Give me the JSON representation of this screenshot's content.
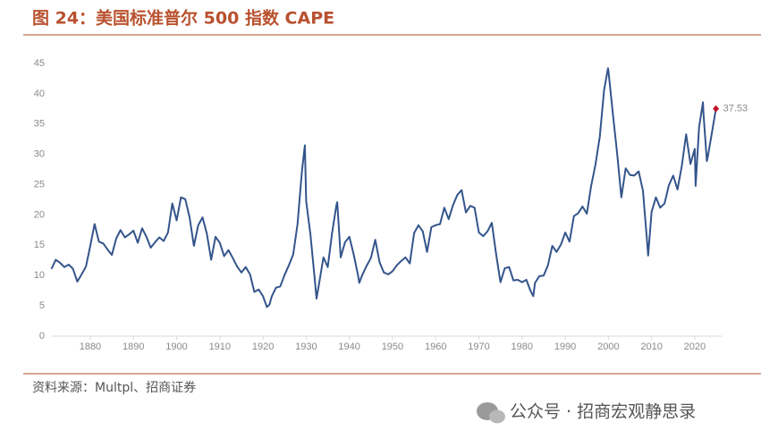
{
  "chart_data": {
    "type": "line",
    "title": "图 24：美国标准普尔 500 指数 CAPE",
    "source": "资料来源：Multpl、招商证券",
    "color": "#34558b",
    "marker_color": "#c0142a",
    "x": [
      1871,
      1872,
      1873,
      1874,
      1875,
      1876,
      1877,
      1878,
      1879,
      1880,
      1881,
      1882,
      1883,
      1884,
      1885,
      1886,
      1887,
      1888,
      1889,
      1890,
      1891,
      1892,
      1893,
      1894,
      1895,
      1896,
      1897,
      1898,
      1899,
      1900,
      1901,
      1902,
      1903,
      1904,
      1905,
      1906,
      1907,
      1908,
      1909,
      1910,
      1911,
      1912,
      1913,
      1914,
      1915,
      1916,
      1917,
      1918,
      1919,
      1920,
      1920.9,
      1921.5,
      1922,
      1923,
      1924,
      1925,
      1926,
      1927,
      1928,
      1929,
      1929.7,
      1930,
      1931,
      1932,
      1932.4,
      1933,
      1934,
      1935,
      1936,
      1937,
      1937.2,
      1938,
      1939,
      1940,
      1941,
      1942,
      1942.3,
      1943,
      1944,
      1945,
      1946,
      1947,
      1948,
      1949,
      1950,
      1951,
      1952,
      1953,
      1954,
      1955,
      1956,
      1957,
      1958,
      1959,
      1960,
      1961,
      1962,
      1963,
      1964,
      1965,
      1966,
      1967,
      1968,
      1969,
      1970,
      1971,
      1972,
      1973,
      1974,
      1975,
      1976,
      1977,
      1978,
      1979,
      1980,
      1981,
      1982,
      1982.6,
      1983,
      1984,
      1985,
      1986,
      1987,
      1988,
      1989,
      1990,
      1991,
      1992,
      1993,
      1994,
      1995,
      1996,
      1997,
      1998,
      1999,
      1999.9,
      2000,
      2001,
      2002,
      2003,
      2004,
      2005,
      2006,
      2007,
      2008,
      2009,
      2009.2,
      2010,
      2011,
      2012,
      2013,
      2014,
      2015,
      2016,
      2017,
      2018,
      2019,
      2020,
      2020.2,
      2021,
      2021.9,
      2022,
      2022.8,
      2023,
      2024,
      2024.9
    ],
    "values": [
      11.1,
      12.6,
      12.1,
      11.4,
      11.8,
      11.1,
      9.0,
      10.2,
      11.5,
      14.9,
      18.5,
      15.6,
      15.3,
      14.3,
      13.4,
      16.1,
      17.5,
      16.3,
      16.8,
      17.4,
      15.4,
      17.8,
      16.4,
      14.6,
      15.5,
      16.3,
      15.7,
      17.1,
      21.9,
      19.1,
      22.9,
      22.6,
      19.6,
      14.9,
      18.3,
      19.6,
      16.9,
      12.6,
      16.4,
      15.4,
      13.2,
      14.2,
      12.9,
      11.5,
      10.5,
      11.4,
      10.2,
      7.3,
      7.7,
      6.6,
      4.8,
      5.2,
      6.5,
      8.0,
      8.2,
      10.1,
      11.7,
      13.5,
      18.5,
      27.1,
      31.5,
      22.3,
      16.7,
      9.3,
      6.2,
      8.7,
      13.0,
      11.4,
      17.0,
      21.6,
      22.1,
      13.0,
      15.5,
      16.4,
      13.5,
      10.1,
      8.8,
      10.1,
      11.6,
      12.9,
      15.9,
      12.2,
      10.5,
      10.2,
      10.7,
      11.7,
      12.4,
      13.0,
      12.0,
      17.0,
      18.3,
      17.3,
      13.9,
      18.0,
      18.3,
      18.5,
      21.2,
      19.3,
      21.6,
      23.3,
      24.1,
      20.4,
      21.5,
      21.2,
      17.1,
      16.5,
      17.3,
      18.7,
      13.5,
      8.9,
      11.2,
      11.4,
      9.2,
      9.3,
      8.9,
      9.3,
      7.4,
      6.6,
      8.8,
      9.9,
      10.0,
      11.7,
      14.9,
      13.9,
      15.1,
      17.1,
      15.6,
      19.8,
      20.3,
      21.4,
      20.2,
      24.8,
      28.3,
      32.9,
      40.6,
      44.2,
      43.8,
      36.9,
      30.3,
      22.9,
      27.7,
      26.6,
      26.5,
      27.2,
      24.0,
      15.2,
      13.3,
      20.5,
      22.9,
      21.2,
      21.9,
      24.9,
      26.5,
      24.2,
      28.1,
      33.3,
      28.4,
      30.9,
      24.8,
      34.5,
      38.6,
      36.9,
      28.9,
      29.5,
      33.7,
      37.53
    ],
    "xlim": [
      1871,
      2025.4
    ],
    "xticks": [
      1880,
      1890,
      1900,
      1910,
      1920,
      1930,
      1940,
      1950,
      1960,
      1970,
      1980,
      1990,
      2000,
      2010,
      2020
    ],
    "ylim": [
      0,
      45
    ],
    "yticks": [
      0,
      5,
      10,
      15,
      20,
      25,
      30,
      35,
      40,
      45
    ]
  },
  "watermark": "公众号 · 招商宏观静思录"
}
